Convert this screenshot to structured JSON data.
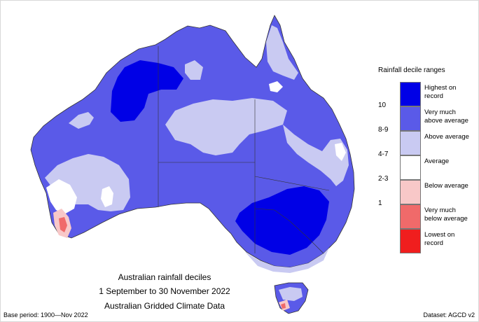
{
  "legend": {
    "title": "Rainfall decile ranges",
    "items": [
      {
        "label": "Highest on\nrecord",
        "color": "#0000e6"
      },
      {
        "label": "Very much\nabove average",
        "color": "#5a5ae8"
      },
      {
        "label": "Above average",
        "color": "#c9caf2"
      },
      {
        "label": "Average",
        "color": "#ffffff"
      },
      {
        "label": "Below average",
        "color": "#f8c8c8"
      },
      {
        "label": "Very much\nbelow average",
        "color": "#f06a6a"
      },
      {
        "label": "Lowest on\nrecord",
        "color": "#f01e1e"
      }
    ],
    "ticks": [
      "10",
      "8-9",
      "4-7",
      "2-3",
      "1"
    ]
  },
  "caption": {
    "line1": "Australian rainfall deciles",
    "line2": "1 September to 30 November 2022",
    "line3": "Australian Gridded Climate Data"
  },
  "footer": {
    "base_period": "Base period: 1900—Nov 2022",
    "dataset": "Dataset: AGCD v2"
  },
  "map": {
    "region": "Australia",
    "colors": {
      "highest": "#0000e6",
      "very_much_above": "#5a5ae8",
      "above": "#c9caf2",
      "average": "#ffffff",
      "below": "#f8c8c8",
      "very_much_below": "#f06a6a",
      "outline": "#333333"
    }
  }
}
